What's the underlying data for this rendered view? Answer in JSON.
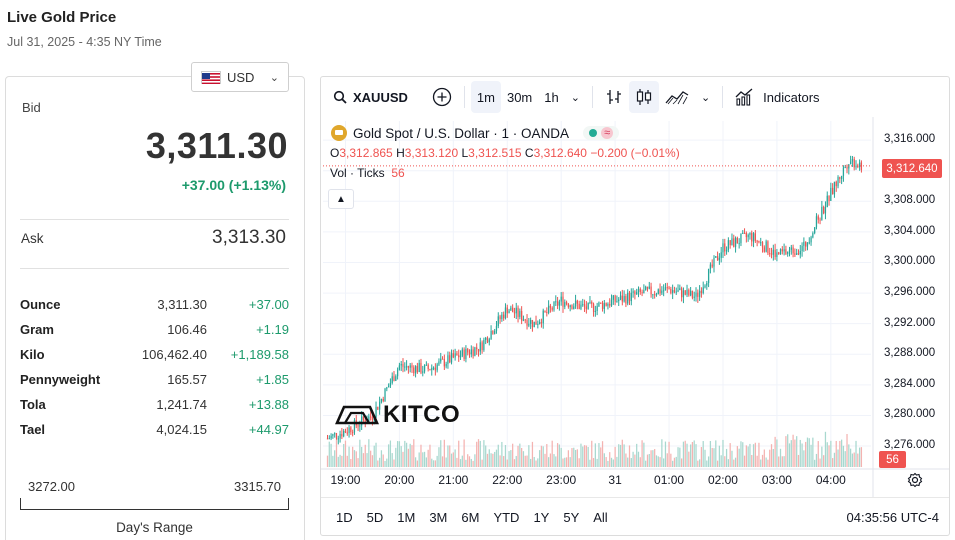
{
  "page": {
    "title": "Live Gold Price",
    "date": "Jul 31, 2025 - 4:35 NY Time"
  },
  "currency": {
    "selected": "USD"
  },
  "bid": {
    "label": "Bid",
    "value": "3,311.30",
    "change": "+37.00 (+1.13%)"
  },
  "ask": {
    "label": "Ask",
    "value": "3,313.30"
  },
  "units": [
    {
      "name": "Ounce",
      "price": "3,311.30",
      "change": "+37.00"
    },
    {
      "name": "Gram",
      "price": "106.46",
      "change": "+1.19"
    },
    {
      "name": "Kilo",
      "price": "106,462.40",
      "change": "+1,189.58"
    },
    {
      "name": "Pennyweight",
      "price": "165.57",
      "change": "+1.85"
    },
    {
      "name": "Tola",
      "price": "1,241.74",
      "change": "+13.88"
    },
    {
      "name": "Tael",
      "price": "4,024.15",
      "change": "+44.97"
    }
  ],
  "day_range": {
    "low": "3272.00",
    "high": "3315.70",
    "label": "Day's Range"
  },
  "chart": {
    "symbol": "XAUUSD",
    "intervals": [
      "1m",
      "30m",
      "1h"
    ],
    "active_interval": "1m",
    "indicators_label": "Indicators",
    "legend_title": "Gold Spot / U.S. Dollar · 1 · OANDA",
    "market_pill": "≈",
    "ohlc": {
      "o_label": "O",
      "o": "3,312.865",
      "h_label": "H",
      "h": "3,313.120",
      "l_label": "L",
      "l": "3,312.515",
      "c_label": "C",
      "c": "3,312.640",
      "chg": "−0.200 (−0.01%)"
    },
    "volume_label": "Vol · Ticks",
    "volume_value": "56",
    "last_price": "3,312.640",
    "y_ticks": [
      "3,316.000",
      "3,312.000",
      "3,308.000",
      "3,304.000",
      "3,300.000",
      "3,296.000",
      "3,292.000",
      "3,288.000",
      "3,284.000",
      "3,280.000",
      "3,276.000"
    ],
    "x_ticks": [
      "19:00",
      "20:00",
      "21:00",
      "22:00",
      "23:00",
      "31",
      "01:00",
      "02:00",
      "03:00",
      "04:00"
    ],
    "range_buttons": [
      "1D",
      "5D",
      "1M",
      "3M",
      "6M",
      "YTD",
      "1Y",
      "5Y",
      "All"
    ],
    "time": "04:35:56 UTC-4",
    "watermark": "KITCO",
    "colors": {
      "up": "#26a69a",
      "down": "#ef5350",
      "accent": "#ef5350"
    }
  },
  "chart_data": {
    "type": "line",
    "title": "Gold Spot / U.S. Dollar · 1 · OANDA",
    "xlabel": "",
    "ylabel": "",
    "x": [
      "18:40",
      "19:00",
      "19:30",
      "20:00",
      "20:30",
      "21:00",
      "21:30",
      "22:00",
      "22:30",
      "23:00",
      "23:30",
      "00:00",
      "00:30",
      "01:00",
      "01:30",
      "02:00",
      "02:30",
      "03:00",
      "03:30",
      "04:00",
      "04:20",
      "04:35"
    ],
    "series": [
      {
        "values": [
          3277.0,
          3278.0,
          3280.0,
          3286.5,
          3286.0,
          3287.5,
          3289.0,
          3294.0,
          3292.0,
          3295.0,
          3294.0,
          3295.0,
          3296.0,
          3296.5,
          3295.5,
          3302.0,
          3303.5,
          3301.0,
          3302.0,
          3309.0,
          3313.5,
          3312.64
        ]
      }
    ],
    "ylim": [
      3273.0,
      3318.5
    ],
    "grid": true
  }
}
